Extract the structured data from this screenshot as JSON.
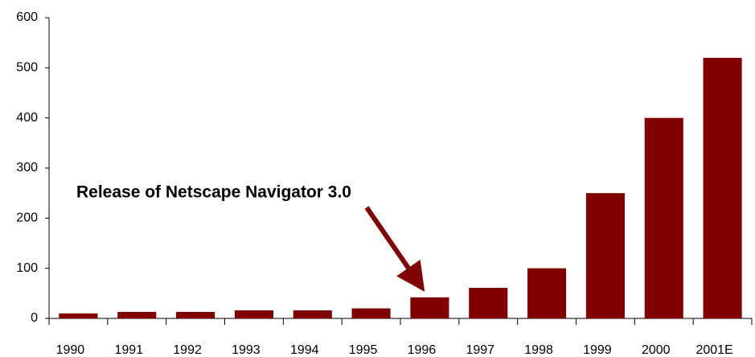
{
  "chart_data": {
    "type": "bar",
    "categories": [
      "1990",
      "1991",
      "1992",
      "1993",
      "1994",
      "1995",
      "1996",
      "1997",
      "1998",
      "1999",
      "2000",
      "2001E"
    ],
    "values": [
      10,
      13,
      13,
      16,
      16,
      20,
      42,
      61,
      100,
      250,
      400,
      520
    ],
    "color": "#800000",
    "ylim": [
      0,
      600
    ],
    "yticks": [
      0,
      100,
      200,
      300,
      400,
      500,
      600
    ],
    "grid": false,
    "annotation": "Release of Netscape Navigator 3.0"
  }
}
